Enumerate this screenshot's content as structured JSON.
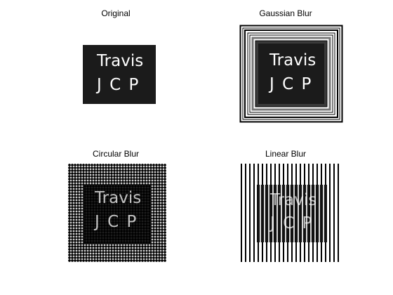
{
  "figure": {
    "panels": [
      {
        "title": "Original",
        "text_line1": "Travis",
        "text_line2": "J C P"
      },
      {
        "title": "Gaussian Blur",
        "text_line1": "Travis",
        "text_line2": "J C P"
      },
      {
        "title": "Circular Blur",
        "text_line1": "Travis",
        "text_line2": "J C P"
      },
      {
        "title": "Linear Blur",
        "text_line1": "Travis",
        "text_line2": "J C P"
      }
    ]
  },
  "colors": {
    "background": "#ffffff",
    "ink": "#000000",
    "text": "#ffffff"
  }
}
